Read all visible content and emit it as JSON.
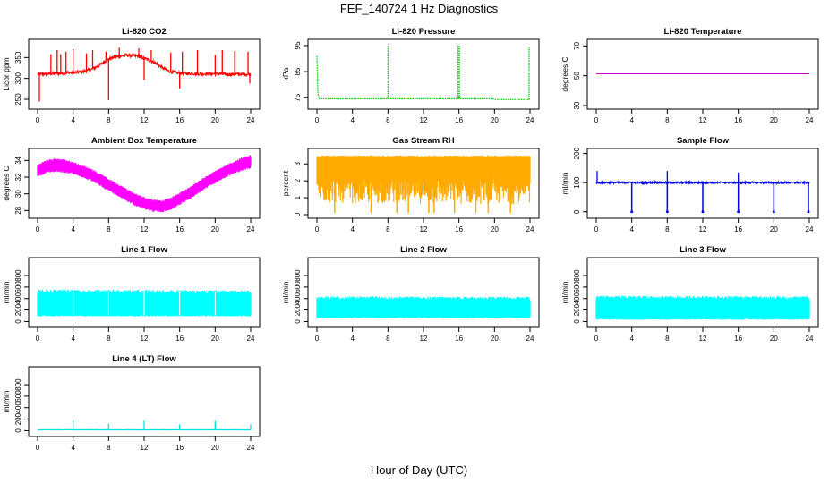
{
  "figure": {
    "title": "FEF_140724  1 Hz Diagnostics",
    "xlabel": "Hour of Day (UTC)"
  },
  "chart_data": [
    {
      "type": "line",
      "title": "Li-820 CO2",
      "ylabel": "Licor ppm",
      "xlim": [
        0,
        24
      ],
      "ylim": [
        235,
        385
      ],
      "xticks": [
        "0",
        "4",
        "8",
        "12",
        "16",
        "20",
        "24"
      ],
      "yticks": [
        "250",
        "300",
        "350"
      ],
      "color": "#ff0000",
      "series": [
        {
          "x": [
            0,
            0.5,
            1,
            1.5,
            2,
            2.5,
            3,
            3.5,
            4,
            4.5,
            5,
            5.5,
            6,
            6.5,
            7,
            7.5,
            8,
            8.5,
            9,
            9.5,
            10,
            10.5,
            11,
            11.5,
            12,
            12.5,
            13,
            13.5,
            14,
            14.5,
            15,
            15.5,
            16,
            16.5,
            17,
            17.5,
            18,
            18.5,
            19,
            19.5,
            20,
            20.5,
            21,
            21.5,
            22,
            22.5,
            23,
            23.5,
            24
          ],
          "y": [
            310,
            310,
            311,
            311,
            312,
            312,
            313,
            314,
            314,
            315,
            316,
            318,
            321,
            326,
            332,
            340,
            346,
            350,
            352,
            354,
            356,
            355,
            354,
            352,
            348,
            344,
            340,
            334,
            326,
            320,
            316,
            314,
            313,
            312,
            312,
            312,
            311,
            311,
            311,
            311,
            311,
            311,
            310,
            310,
            310,
            310,
            310,
            310,
            310
          ],
          "spikes": [
            {
              "x": 0.2,
              "y": 245
            },
            {
              "x": 1.5,
              "y": 358
            },
            {
              "x": 2.2,
              "y": 368
            },
            {
              "x": 2.6,
              "y": 358
            },
            {
              "x": 3.2,
              "y": 364
            },
            {
              "x": 4.0,
              "y": 370
            },
            {
              "x": 5.5,
              "y": 360
            },
            {
              "x": 6.2,
              "y": 368
            },
            {
              "x": 7.7,
              "y": 364
            },
            {
              "x": 8.0,
              "y": 248
            },
            {
              "x": 9.2,
              "y": 374
            },
            {
              "x": 11.4,
              "y": 372
            },
            {
              "x": 12.0,
              "y": 296
            },
            {
              "x": 12.8,
              "y": 368
            },
            {
              "x": 15.0,
              "y": 362
            },
            {
              "x": 16.0,
              "y": 276
            },
            {
              "x": 16.3,
              "y": 364
            },
            {
              "x": 18.0,
              "y": 368
            },
            {
              "x": 20.0,
              "y": 356
            },
            {
              "x": 20.8,
              "y": 368
            },
            {
              "x": 22.2,
              "y": 366
            },
            {
              "x": 23.7,
              "y": 364
            },
            {
              "x": 23.9,
              "y": 288
            }
          ]
        }
      ]
    },
    {
      "type": "line",
      "title": "Li-820 Pressure",
      "ylabel": "kPa",
      "xlim": [
        0,
        24
      ],
      "ylim": [
        72,
        96
      ],
      "xticks": [
        "0",
        "4",
        "8",
        "12",
        "16",
        "20",
        "24"
      ],
      "yticks": [
        "75",
        "85",
        "95"
      ],
      "color": "#00cc00",
      "series": [
        {
          "x": [
            0,
            0.1,
            0.2,
            0.3,
            4,
            8,
            12,
            16,
            19.8,
            20,
            24
          ],
          "y": [
            91,
            77,
            74.7,
            74.6,
            74.6,
            74.6,
            74.6,
            74.6,
            74.6,
            74.3,
            74.3
          ],
          "spikes": [
            {
              "x": 8.0,
              "y": 95
            },
            {
              "x": 15.9,
              "y": 95
            },
            {
              "x": 16.05,
              "y": 95
            },
            {
              "x": 23.9,
              "y": 94.5
            }
          ]
        }
      ]
    },
    {
      "type": "line",
      "title": "Li-820 Temperature",
      "ylabel": "degrees C",
      "xlim": [
        0,
        24
      ],
      "ylim": [
        30,
        72
      ],
      "xticks": [
        "0",
        "4",
        "8",
        "12",
        "16",
        "20",
        "24"
      ],
      "yticks": [
        "30",
        "50",
        "70"
      ],
      "color": "#cc00cc",
      "series": [
        {
          "x": [
            0,
            24
          ],
          "y": [
            51.3,
            51.3
          ]
        }
      ]
    },
    {
      "type": "area",
      "title": "Ambient Box Temperature",
      "ylabel": "degrees C",
      "xlim": [
        0,
        24
      ],
      "ylim": [
        27.5,
        35
      ],
      "xticks": [
        "0",
        "4",
        "8",
        "12",
        "16",
        "20",
        "24"
      ],
      "yticks": [
        "28",
        "30",
        "32",
        "34"
      ],
      "color": "#ff00ff",
      "series": [
        {
          "x": [
            0,
            1,
            2,
            3,
            4,
            5,
            6,
            7,
            8,
            9,
            10,
            11,
            12,
            13,
            14,
            15,
            16,
            17,
            18,
            19,
            20,
            21,
            22,
            23,
            24
          ],
          "low": [
            32.3,
            32.7,
            32.9,
            32.8,
            32.6,
            32.2,
            31.8,
            31.2,
            30.6,
            30.0,
            29.4,
            28.8,
            28.4,
            28.1,
            28.0,
            28.3,
            28.9,
            29.5,
            30.2,
            30.9,
            31.5,
            32.1,
            32.6,
            33.0,
            33.3
          ],
          "high": [
            33.3,
            33.8,
            34.0,
            33.9,
            33.6,
            33.2,
            32.8,
            32.2,
            31.6,
            31.0,
            30.4,
            29.8,
            29.4,
            29.1,
            29.0,
            29.3,
            29.9,
            30.5,
            31.2,
            31.9,
            32.5,
            33.1,
            33.6,
            34.1,
            34.4
          ]
        }
      ]
    },
    {
      "type": "area",
      "title": "Gas Stream RH",
      "ylabel": "percent",
      "xlim": [
        0,
        24
      ],
      "ylim": [
        0,
        3.7
      ],
      "xticks": [
        "0",
        "4",
        "8",
        "12",
        "16",
        "20",
        "24"
      ],
      "yticks": [
        "0",
        "1",
        "2",
        "3"
      ],
      "color": "#ffaa00",
      "series": [
        {
          "x": [
            0,
            24
          ],
          "low": [
            0.7,
            0.6
          ],
          "high": [
            3.5,
            3.5
          ],
          "dips": [
            2.0,
            6.1,
            9.0,
            10.3,
            12.6,
            13.2,
            15.5,
            17.9,
            19.3,
            21.8
          ]
        }
      ]
    },
    {
      "type": "line",
      "title": "Sample Flow",
      "ylabel": "ml/min",
      "xlim": [
        0,
        24
      ],
      "ylim": [
        -10,
        205
      ],
      "xticks": [
        "0",
        "4",
        "8",
        "12",
        "16",
        "20",
        "24"
      ],
      "yticks": [
        "0",
        "100",
        "200"
      ],
      "color": "#0000ee",
      "series": [
        {
          "x": [
            0,
            24
          ],
          "y": [
            100,
            100
          ],
          "spikes": [
            {
              "x": 0.1,
              "y": 140
            },
            {
              "x": 8.0,
              "y": 140
            },
            {
              "x": 16.0,
              "y": 135
            }
          ],
          "dips": [
            4.0,
            8.0,
            12.0,
            16.0,
            20.0,
            23.9
          ]
        }
      ]
    },
    {
      "type": "area",
      "title": "Line 1 Flow",
      "ylabel": "ml/min",
      "xlim": [
        0,
        24
      ],
      "ylim": [
        -40,
        1050
      ],
      "xticks": [
        "0",
        "4",
        "8",
        "12",
        "16",
        "20",
        "24"
      ],
      "yticks": [
        "0",
        "200",
        "400",
        "600",
        "800"
      ],
      "color": "#00ffff",
      "series": [
        {
          "x": [
            0,
            24
          ],
          "low": [
            90,
            90
          ],
          "high": [
            560,
            540
          ],
          "gaps": [
            4,
            8,
            12,
            16,
            20
          ]
        }
      ]
    },
    {
      "type": "area",
      "title": "Line 2 Flow",
      "ylabel": "ml/min",
      "xlim": [
        0,
        24
      ],
      "ylim": [
        -40,
        1050
      ],
      "xticks": [
        "0",
        "4",
        "8",
        "12",
        "16",
        "20",
        "24"
      ],
      "yticks": [
        "0",
        "200",
        "400",
        "600",
        "800"
      ],
      "color": "#00ffff",
      "series": [
        {
          "x": [
            0,
            24
          ],
          "low": [
            60,
            60
          ],
          "high": [
            440,
            430
          ]
        }
      ]
    },
    {
      "type": "area",
      "title": "Line 3 Flow",
      "ylabel": "ml/min",
      "xlim": [
        0,
        24
      ],
      "ylim": [
        -40,
        1050
      ],
      "xticks": [
        "0",
        "4",
        "8",
        "12",
        "16",
        "20",
        "24"
      ],
      "yticks": [
        "0",
        "200",
        "400",
        "600",
        "800"
      ],
      "color": "#00ffff",
      "series": [
        {
          "x": [
            0,
            24
          ],
          "low": [
            30,
            30
          ],
          "high": [
            450,
            440
          ]
        }
      ]
    },
    {
      "type": "line",
      "title": "Line 4 (LT) Flow",
      "ylabel": "ml/min",
      "xlim": [
        0,
        24
      ],
      "ylim": [
        -40,
        1050
      ],
      "xticks": [
        "0",
        "4",
        "8",
        "12",
        "16",
        "20",
        "24"
      ],
      "yticks": [
        "0",
        "200",
        "400",
        "600",
        "800"
      ],
      "color": "#00e5e5",
      "series": [
        {
          "x": [
            0,
            24
          ],
          "y": [
            15,
            15
          ],
          "spikes": [
            {
              "x": 4.0,
              "y": 180
            },
            {
              "x": 8.0,
              "y": 120
            },
            {
              "x": 12.0,
              "y": 170
            },
            {
              "x": 16.0,
              "y": 110
            },
            {
              "x": 20.0,
              "y": 170
            },
            {
              "x": 24.0,
              "y": 110
            }
          ]
        }
      ]
    }
  ]
}
